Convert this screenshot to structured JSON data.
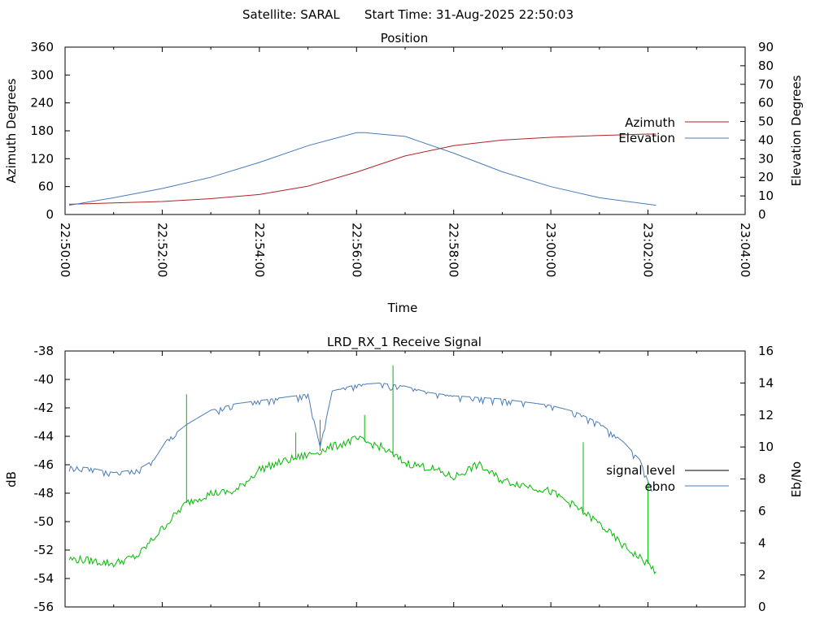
{
  "header": {
    "satellite": "Satellite: SARAL",
    "start_time": "Start Time: 31-Aug-2025 22:50:03"
  },
  "chart_data": [
    {
      "type": "line",
      "title": "Position",
      "xlabel": "Time",
      "ylabel": "Azimuth Degrees",
      "y2label": "Elevation Degrees",
      "x_ticks": [
        "22:50:00",
        "22:52:00",
        "22:54:00",
        "22:56:00",
        "22:58:00",
        "23:00:00",
        "23:02:00",
        "23:04:00"
      ],
      "y_ticks": [
        0,
        60,
        120,
        180,
        240,
        300,
        360
      ],
      "y2_ticks": [
        0,
        10,
        20,
        30,
        40,
        50,
        60,
        70,
        80,
        90
      ],
      "ylim": [
        0,
        360
      ],
      "y2lim": [
        0,
        90
      ],
      "legend_position": "right",
      "grid": false,
      "series": [
        {
          "name": "Azimuth",
          "axis": "left",
          "color": "#b22222",
          "points": [
            [
              "22:50:05",
              22
            ],
            [
              "22:51:00",
              25
            ],
            [
              "22:52:00",
              28
            ],
            [
              "22:53:00",
              34
            ],
            [
              "22:54:00",
              43
            ],
            [
              "22:55:00",
              61
            ],
            [
              "22:56:00",
              91
            ],
            [
              "22:57:00",
              126
            ],
            [
              "22:58:00",
              148
            ],
            [
              "22:59:00",
              160
            ],
            [
              "23:00:00",
              166
            ],
            [
              "23:01:00",
              170
            ],
            [
              "23:02:00",
              173
            ],
            [
              "23:02:10",
              173
            ]
          ]
        },
        {
          "name": "Elevation",
          "axis": "right",
          "color": "#4a7bb7",
          "points": [
            [
              "22:50:05",
              5
            ],
            [
              "22:51:00",
              9
            ],
            [
              "22:52:00",
              14
            ],
            [
              "22:53:00",
              20
            ],
            [
              "22:54:00",
              28
            ],
            [
              "22:55:00",
              37
            ],
            [
              "22:56:00",
              44
            ],
            [
              "22:56:10",
              44
            ],
            [
              "22:57:00",
              42
            ],
            [
              "22:58:00",
              33
            ],
            [
              "22:59:00",
              23
            ],
            [
              "23:00:00",
              15
            ],
            [
              "23:01:00",
              9
            ],
            [
              "23:02:10",
              5
            ]
          ]
        }
      ]
    },
    {
      "type": "line",
      "title": "LRD_RX_1 Receive Signal",
      "xlabel": "",
      "ylabel": "dB",
      "y2label": "Eb/No",
      "x_range": [
        "22:50:00",
        "23:04:00"
      ],
      "y_ticks": [
        -38,
        -40,
        -42,
        -44,
        -46,
        -48,
        -50,
        -52,
        -54,
        -56
      ],
      "y2_ticks": [
        16,
        14,
        12,
        10,
        8,
        6,
        4,
        2,
        0
      ],
      "ylim": [
        -56,
        -38
      ],
      "y2lim": [
        0,
        16
      ],
      "legend_position": "right",
      "grid": false,
      "series": [
        {
          "name": "signal level",
          "axis": "left",
          "color": "#000000",
          "legend_only": true,
          "points": []
        },
        {
          "name": "ebno",
          "axis": "right",
          "color": "#4a7bb7",
          "points": [
            [
              "22:50:05",
              8.8
            ],
            [
              "22:50:30",
              8.7
            ],
            [
              "22:51:00",
              8.4
            ],
            [
              "22:51:30",
              8.6
            ],
            [
              "22:51:50",
              9.2
            ],
            [
              "22:52:05",
              10.4
            ],
            [
              "22:52:30",
              11.4
            ],
            [
              "22:53:00",
              12.3
            ],
            [
              "22:53:30",
              12.7
            ],
            [
              "22:54:00",
              12.9
            ],
            [
              "22:54:30",
              13.1
            ],
            [
              "22:55:00",
              13.3
            ],
            [
              "22:55:15",
              10.0
            ],
            [
              "22:55:30",
              13.5
            ],
            [
              "22:56:00",
              13.9
            ],
            [
              "22:56:30",
              14.0
            ],
            [
              "22:57:00",
              13.8
            ],
            [
              "22:57:30",
              13.4
            ],
            [
              "22:58:00",
              13.2
            ],
            [
              "22:58:30",
              13.1
            ],
            [
              "22:59:00",
              13.0
            ],
            [
              "22:59:30",
              12.8
            ],
            [
              "23:00:00",
              12.6
            ],
            [
              "23:00:30",
              12.2
            ],
            [
              "23:01:00",
              11.5
            ],
            [
              "23:01:30",
              10.3
            ],
            [
              "23:01:50",
              9.2
            ],
            [
              "23:02:05",
              7.2
            ]
          ]
        },
        {
          "name": "",
          "axis": "right",
          "color": "#00bb00",
          "points": [
            [
              "22:50:05",
              3.0
            ],
            [
              "22:50:30",
              2.9
            ],
            [
              "22:51:00",
              2.7
            ],
            [
              "22:51:30",
              3.2
            ],
            [
              "22:52:00",
              4.9
            ],
            [
              "22:52:30",
              6.5
            ],
            [
              "22:53:00",
              7.1
            ],
            [
              "22:53:30",
              7.2
            ],
            [
              "22:54:00",
              8.6
            ],
            [
              "22:54:30",
              9.1
            ],
            [
              "22:55:00",
              9.5
            ],
            [
              "22:55:30",
              10.0
            ],
            [
              "22:56:00",
              10.5
            ],
            [
              "22:56:30",
              10.0
            ],
            [
              "22:57:00",
              9.0
            ],
            [
              "22:57:30",
              8.7
            ],
            [
              "22:58:00",
              8.1
            ],
            [
              "22:58:30",
              8.9
            ],
            [
              "22:59:00",
              7.9
            ],
            [
              "22:59:30",
              7.6
            ],
            [
              "23:00:00",
              7.2
            ],
            [
              "23:00:30",
              6.3
            ],
            [
              "23:01:00",
              5.2
            ],
            [
              "23:01:30",
              3.8
            ],
            [
              "23:02:00",
              2.7
            ],
            [
              "23:02:10",
              2.2
            ]
          ],
          "spikes": [
            [
              "22:52:30",
              13.3
            ],
            [
              "22:54:45",
              10.9
            ],
            [
              "22:55:15",
              11.7
            ],
            [
              "22:56:10",
              12.0
            ],
            [
              "22:56:45",
              15.1
            ],
            [
              "23:00:40",
              10.3
            ],
            [
              "23:02:00",
              7.8
            ]
          ]
        }
      ]
    }
  ]
}
